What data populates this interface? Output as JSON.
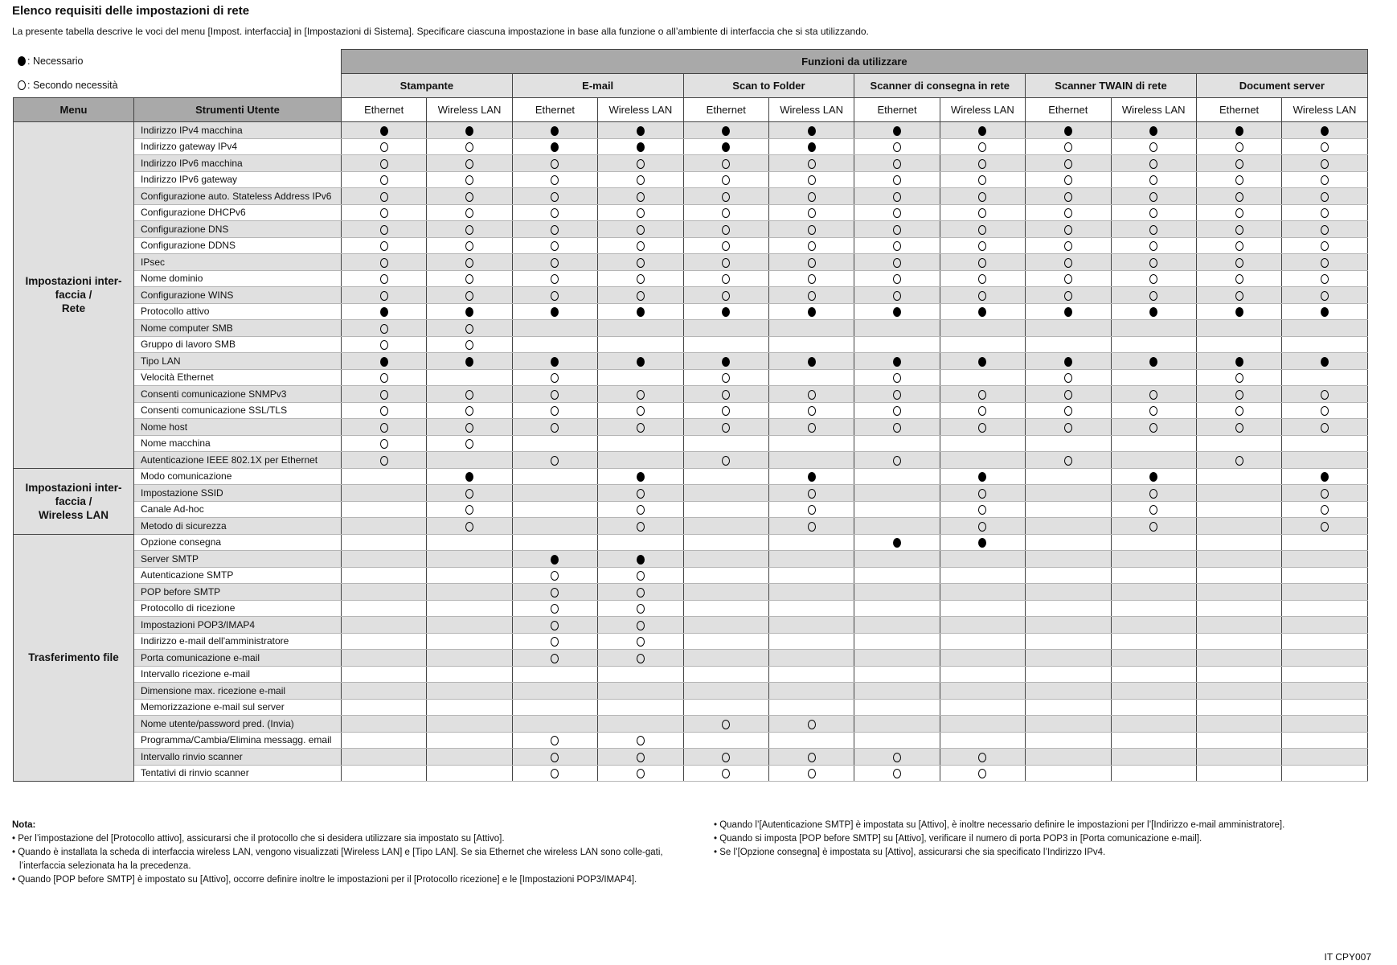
{
  "title": "Elenco requisiti delle impostazioni di rete",
  "intro": "La presente tabella descrive le voci del menu [Impost. interfaccia] in [Impostazioni di Sistema]. Specificare ciascuna impostazione in base alla funzione o all’ambiente di interfaccia che si sta utilizzando.",
  "legend": {
    "required": ": Necessario",
    "optional": ": Secondo necessità"
  },
  "table": {
    "functions_header": "Funzioni da utilizzare",
    "menu_header": "Menu",
    "tools_header": "Strumenti Utente",
    "functions": [
      "Stampante",
      "E-mail",
      "Scan to Folder",
      "Scanner di consegna in rete",
      "Scanner TWAIN di rete",
      "Document server"
    ],
    "interfaces": [
      "Ethernet",
      "Wireless LAN"
    ],
    "mark_codes": {
      "F": "required",
      "O": "optional",
      "-": "none"
    },
    "groups": [
      {
        "menu": "Impostazioni inter-\nfaccia /\nRete",
        "rows": [
          {
            "tool": "Indirizzo IPv4 macchina",
            "marks": "FFFFFFFFFFFF"
          },
          {
            "tool": "Indirizzo gateway IPv4",
            "marks": "OOFFFFOOOOOO"
          },
          {
            "tool": "Indirizzo IPv6 macchina",
            "marks": "OOOOOOOOOOOO"
          },
          {
            "tool": "Indirizzo IPv6 gateway",
            "marks": "OOOOOOOOOOOO"
          },
          {
            "tool": "Configurazione auto. Stateless Address IPv6",
            "marks": "OOOOOOOOOOOO"
          },
          {
            "tool": "Configurazione DHCPv6",
            "marks": "OOOOOOOOOOOO"
          },
          {
            "tool": "Configurazione DNS",
            "marks": "OOOOOOOOOOOO"
          },
          {
            "tool": "Configurazione DDNS",
            "marks": "OOOOOOOOOOOO"
          },
          {
            "tool": "IPsec",
            "marks": "OOOOOOOOOOOO"
          },
          {
            "tool": "Nome dominio",
            "marks": "OOOOOOOOOOOO"
          },
          {
            "tool": "Configurazione WINS",
            "marks": "OOOOOOOOOOOO"
          },
          {
            "tool": "Protocollo attivo",
            "marks": "FFFFFFFFFFFF"
          },
          {
            "tool": "Nome computer SMB",
            "marks": "OO----------"
          },
          {
            "tool": "Gruppo di lavoro SMB",
            "marks": "OO----------"
          },
          {
            "tool": "Tipo LAN",
            "marks": "FFFFFFFFFFFF"
          },
          {
            "tool": "Velocità Ethernet",
            "marks": "O-O-O-O-O-O-"
          },
          {
            "tool": "Consenti comunicazione SNMPv3",
            "marks": "OOOOOOOOOOOO"
          },
          {
            "tool": "Consenti comunicazione SSL/TLS",
            "marks": "OOOOOOOOOOOO"
          },
          {
            "tool": "Nome host",
            "marks": "OOOOOOOOOOOO"
          },
          {
            "tool": "Nome macchina",
            "marks": "OO----------"
          },
          {
            "tool": "Autenticazione IEEE 802.1X per Ethernet",
            "marks": "O-O-O-O-O-O-"
          }
        ]
      },
      {
        "menu": "Impostazioni inter-\nfaccia /\nWireless LAN",
        "rows": [
          {
            "tool": "Modo comunicazione",
            "marks": "-F-F-F-F-F-F"
          },
          {
            "tool": "Impostazione SSID",
            "marks": "-O-O-O-O-O-O"
          },
          {
            "tool": "Canale Ad-hoc",
            "marks": "-O-O-O-O-O-O"
          },
          {
            "tool": "Metodo di sicurezza",
            "marks": "-O-O-O-O-O-O"
          }
        ]
      },
      {
        "menu": "Trasferimento file",
        "rows": [
          {
            "tool": "Opzione consegna",
            "marks": "------FF----"
          },
          {
            "tool": "Server SMTP",
            "marks": "--FF--------"
          },
          {
            "tool": "Autenticazione SMTP",
            "marks": "--OO--------"
          },
          {
            "tool": "POP before SMTP",
            "marks": "--OO--------"
          },
          {
            "tool": "Protocollo di ricezione",
            "marks": "--OO--------"
          },
          {
            "tool": "Impostazioni POP3/IMAP4",
            "marks": "--OO--------"
          },
          {
            "tool": "Indirizzo e-mail dell'amministratore",
            "marks": "--OO--------"
          },
          {
            "tool": "Porta comunicazione e-mail",
            "marks": "--OO--------"
          },
          {
            "tool": "Intervallo ricezione e-mail",
            "marks": "------------"
          },
          {
            "tool": "Dimensione max. ricezione e-mail",
            "marks": "------------"
          },
          {
            "tool": "Memorizzazione e-mail sul server",
            "marks": "------------"
          },
          {
            "tool": "Nome utente/password pred. (Invia)",
            "marks": "----OO------"
          },
          {
            "tool": "Programma/Cambia/Elimina messagg. email",
            "marks": "--OO--------"
          },
          {
            "tool": "Intervallo rinvio scanner",
            "marks": "--OOOOOO----"
          },
          {
            "tool": "Tentativi di rinvio scanner",
            "marks": "--OOOOOO----"
          }
        ]
      }
    ]
  },
  "notes": {
    "heading": "Nota:",
    "left": [
      "• Per l’impostazione del [Protocollo attivo], assicurarsi che il protocollo che si desidera utilizzare sia impostato su [Attivo].",
      "• Quando è installata la scheda di interfaccia wireless LAN, vengono visualizzati [Wireless LAN] e [Tipo LAN]. Se sia Ethernet che wireless LAN sono colle-gati, l’interfaccia selezionata ha la precedenza.",
      "• Quando [POP before SMTP] è impostato su [Attivo], occorre definire inoltre le impostazioni per il [Protocollo ricezione] e le [Impostazioni POP3/IMAP4]."
    ],
    "right": [
      "• Quando l’[Autenticazione SMTP] è impostata su [Attivo], è inoltre necessario definire le impostazioni per l’[Indirizzo e-mail amministratore].",
      "• Quando si imposta [POP before SMTP] su [Attivo], verificare il numero di porta POP3 in [Porta comunicazione e-mail].",
      "• Se l’[Opzione consegna] è impostata su [Attivo], assicurarsi che sia specificato l’Indirizzo IPv4."
    ]
  },
  "footer_code": "IT CPY007"
}
